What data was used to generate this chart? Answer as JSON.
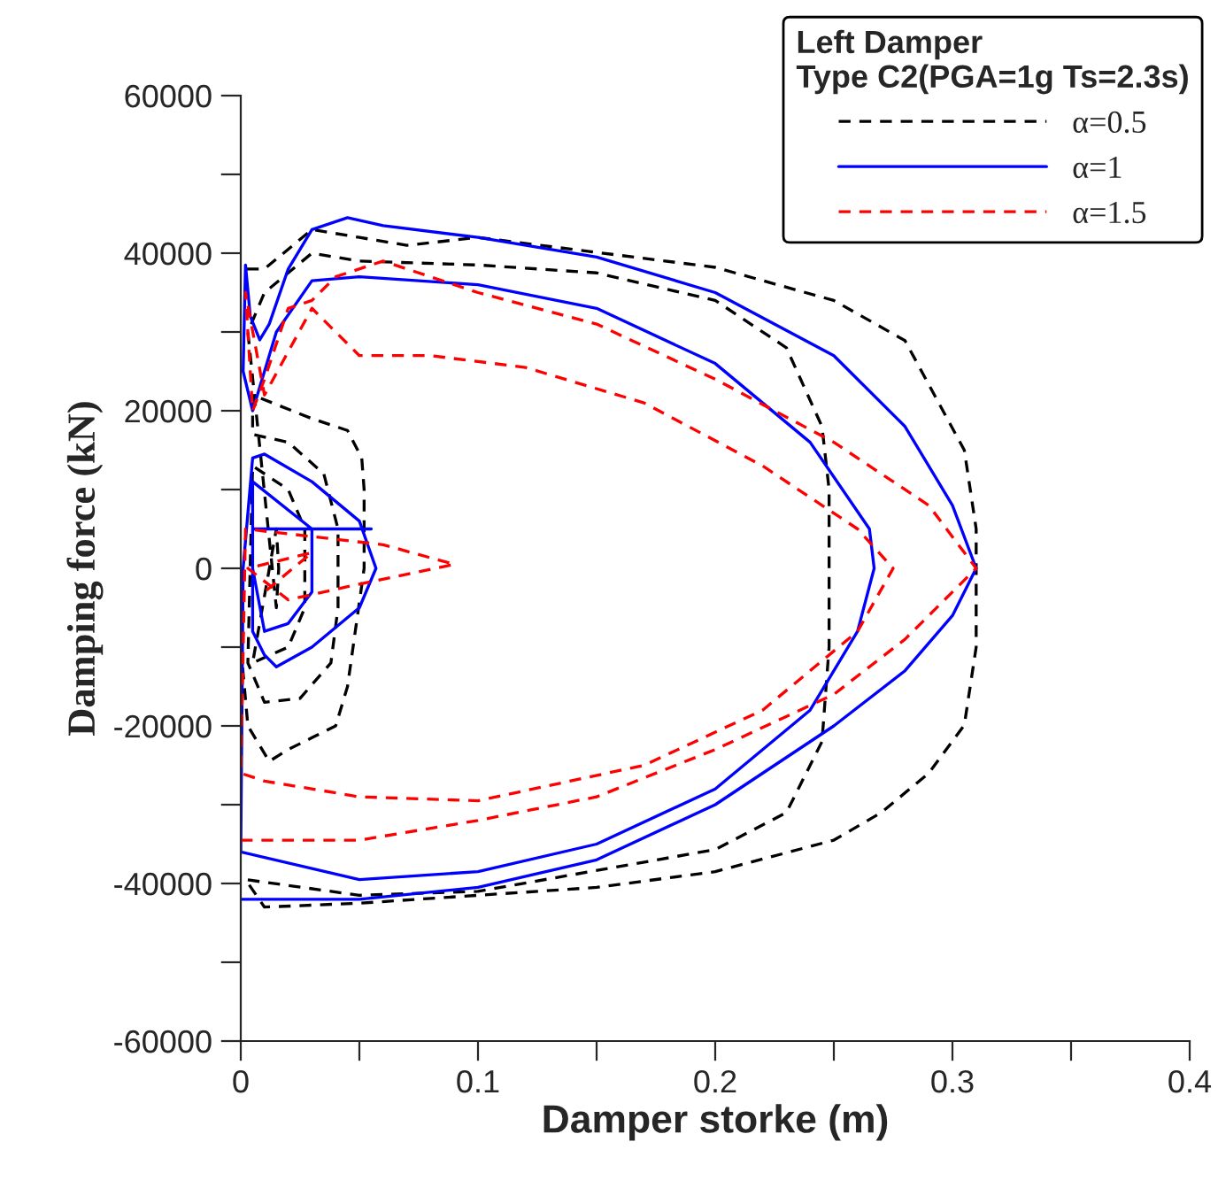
{
  "chart_data": {
    "type": "line",
    "xlabel": "Damper storke (m)",
    "ylabel": "Damping force (kN)",
    "legend_title": "Left Damper\nType C2(PGA=1g Ts=2.3s)",
    "legend": "top right",
    "grid": false,
    "xlim": [
      0,
      0.4
    ],
    "xticks": [
      0,
      {
        "value": 0.05,
        "label": null
      },
      0.1,
      {
        "value": 0.15,
        "label": null
      },
      0.2,
      {
        "value": 0.25,
        "label": null
      },
      0.3,
      {
        "value": 0.35,
        "label": null
      },
      0.4
    ],
    "ylim": [
      -60000,
      60000
    ],
    "yticks": [
      -60000,
      {
        "value": -50000,
        "label": null
      },
      -40000,
      {
        "value": -30000,
        "label": null
      },
      -20000,
      {
        "value": -10000,
        "label": null
      },
      0,
      {
        "value": 10000,
        "label": null
      },
      20000,
      {
        "value": 30000,
        "label": null
      },
      40000,
      {
        "value": 50000,
        "label": null
      },
      60000
    ],
    "series": [
      {
        "name": "α=0.5",
        "color": "#000000",
        "line_style": "dashed",
        "x": [
          0.0,
          0.003,
          0.012,
          0.02,
          0.03,
          0.04,
          0.045,
          0.052,
          0.052,
          0.051,
          0.045,
          0.03,
          0.005,
          0.005,
          0.02,
          0.035,
          0.041,
          0.041,
          0.038,
          0.025,
          0.01,
          0.003,
          0.005,
          0.02,
          0.027,
          0.027,
          0.02,
          0.005,
          0.015,
          0.016,
          0.015,
          0.003,
          0.01,
          0.03,
          0.05,
          0.1,
          0.15,
          0.2,
          0.23,
          0.245,
          0.248,
          0.248,
          0.245,
          0.23,
          0.2,
          0.1,
          0.05,
          0.002,
          0.01,
          0.05,
          0.1,
          0.15,
          0.2,
          0.25,
          0.27,
          0.29,
          0.305,
          0.31,
          0.31,
          0.305,
          0.28,
          0.25,
          0.2,
          0.1,
          0.07,
          0.05,
          0.03,
          0.01,
          0.002
        ],
        "values": [
          -10000,
          -20000,
          -24500,
          -23000,
          -21500,
          -20000,
          -15000,
          0,
          10000,
          14000,
          17500,
          19000,
          22000,
          17000,
          16000,
          12000,
          5000,
          -5000,
          -12000,
          -16500,
          -17000,
          -12000,
          13000,
          10000,
          5000,
          -5000,
          -10000,
          -12000,
          5000,
          0,
          -5000,
          30000,
          35000,
          40000,
          39000,
          38500,
          37500,
          34000,
          28000,
          18000,
          10000,
          -10000,
          -22000,
          -31000,
          -35700,
          -41000,
          -41500,
          -39500,
          -43000,
          -42500,
          -41500,
          -40500,
          -38500,
          -34500,
          -31000,
          -26000,
          -19900,
          -10000,
          5000,
          15000,
          28900,
          34000,
          38200,
          42000,
          41000,
          42000,
          43000,
          38000,
          38000
        ]
      },
      {
        "name": "α=1",
        "color": "#0000ff",
        "line_style": "solid",
        "x": [
          0.0,
          0.05,
          0.1,
          0.15,
          0.2,
          0.25,
          0.28,
          0.3,
          0.31,
          0.3,
          0.28,
          0.25,
          0.2,
          0.15,
          0.1,
          0.06,
          0.045,
          0.03,
          0.02,
          0.012,
          0.008,
          0.004,
          0.002,
          0.001,
          0.005,
          0.015,
          0.03,
          0.05,
          0.1,
          0.15,
          0.2,
          0.24,
          0.265,
          0.267,
          0.26,
          0.24,
          0.2,
          0.15,
          0.1,
          0.05,
          0.0,
          0.001,
          0.005,
          0.01,
          0.03,
          0.05,
          0.057,
          0.05,
          0.03,
          0.015,
          0.01,
          0.005,
          0.005,
          0.03,
          0.03,
          0.02,
          0.01,
          0.005,
          0.005,
          0.055
        ],
        "values": [
          -42000,
          -42000,
          -40500,
          -37000,
          -30000,
          -20000,
          -13000,
          -6000,
          0,
          8000,
          18000,
          27000,
          35000,
          39500,
          42000,
          43500,
          44500,
          43000,
          38000,
          31000,
          29000,
          32000,
          38500,
          25000,
          20000,
          30000,
          36500,
          37000,
          36000,
          33000,
          26000,
          16000,
          5000,
          0,
          -8000,
          -18000,
          -28000,
          -35000,
          -38500,
          -39500,
          -36000,
          0,
          14000,
          14500,
          11000,
          6000,
          0,
          -5000,
          -10000,
          -12500,
          -11000,
          -8000,
          11000,
          5000,
          -3000,
          -7000,
          -8000,
          0,
          5000,
          5000
        ]
      },
      {
        "name": "α=1.5",
        "color": "#ff0000",
        "line_style": "dashed",
        "x": [
          0.0,
          0.05,
          0.1,
          0.15,
          0.2,
          0.25,
          0.28,
          0.31,
          0.29,
          0.25,
          0.2,
          0.15,
          0.1,
          0.06,
          0.04,
          0.03,
          0.02,
          0.01,
          0.005,
          0.002,
          0.01,
          0.03,
          0.04,
          0.05,
          0.08,
          0.12,
          0.17,
          0.22,
          0.26,
          0.275,
          0.26,
          0.22,
          0.17,
          0.1,
          0.05,
          0.01,
          0.0,
          0.002,
          0.06,
          0.09,
          0.05,
          0.02,
          0.003,
          0.03,
          0.01
        ],
        "values": [
          -34500,
          -34500,
          -32000,
          -29000,
          -23000,
          -16000,
          -9000,
          0,
          8000,
          16000,
          24000,
          31000,
          35000,
          39000,
          37000,
          34000,
          33000,
          24000,
          20000,
          35000,
          22000,
          33000,
          30000,
          27000,
          27000,
          25500,
          21000,
          13000,
          5000,
          0,
          -8000,
          -18000,
          -25000,
          -29500,
          -29000,
          -27000,
          -26000,
          5000,
          3000,
          500,
          -2000,
          -4000,
          0,
          2000,
          -3000
        ]
      }
    ]
  }
}
